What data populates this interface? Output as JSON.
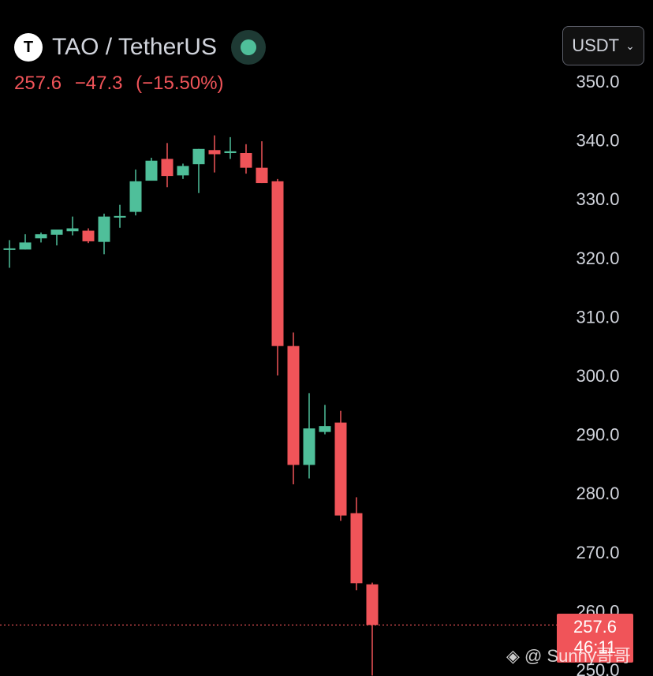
{
  "header": {
    "logo_letter": "T",
    "pair": "TAO / TetherUS",
    "last_price": "257.6",
    "change": "−47.3",
    "change_pct": "(−15.50%)"
  },
  "currency_selector": {
    "label": "USDT",
    "chevron": "chevron-down-icon"
  },
  "last_price_tag": {
    "price": "257.6",
    "countdown": "46:11"
  },
  "watermark": "◈ @ Sunny哥哥",
  "colors": {
    "up": "#4fbf9a",
    "down": "#f05459",
    "background": "#000000",
    "text": "#d1d4dc"
  },
  "chart_data": {
    "type": "candlestick",
    "y_axis_position": "right",
    "y_ticks": [
      350,
      340,
      330,
      320,
      310,
      300,
      290,
      280,
      270,
      260,
      250
    ],
    "ylim": [
      249,
      351
    ],
    "last_price": 257.6,
    "candles": [
      {
        "o": 321.6,
        "h": 323.0,
        "c": 321.6,
        "l": 318.3
      },
      {
        "o": 321.4,
        "h": 324.0,
        "c": 322.6,
        "l": 321.4
      },
      {
        "o": 323.3,
        "h": 324.3,
        "c": 324.0,
        "l": 322.6
      },
      {
        "o": 323.9,
        "h": 324.8,
        "c": 324.8,
        "l": 322.1
      },
      {
        "o": 324.5,
        "h": 327.0,
        "c": 325.0,
        "l": 323.8
      },
      {
        "o": 324.6,
        "h": 325.0,
        "c": 322.8,
        "l": 322.5
      },
      {
        "o": 322.7,
        "h": 327.5,
        "c": 327.0,
        "l": 320.6
      },
      {
        "o": 327.1,
        "h": 329.0,
        "c": 327.1,
        "l": 325.1
      },
      {
        "o": 327.8,
        "h": 335.0,
        "c": 333.0,
        "l": 327.2
      },
      {
        "o": 333.1,
        "h": 337.0,
        "c": 336.5,
        "l": 334.0
      },
      {
        "o": 336.8,
        "h": 339.5,
        "c": 333.9,
        "l": 332.0
      },
      {
        "o": 334.0,
        "h": 336.0,
        "c": 335.6,
        "l": 333.4
      },
      {
        "o": 335.9,
        "h": 338.5,
        "c": 338.5,
        "l": 331.0
      },
      {
        "o": 338.3,
        "h": 340.8,
        "c": 337.6,
        "l": 334.5
      },
      {
        "o": 337.8,
        "h": 340.5,
        "c": 338.1,
        "l": 336.8
      },
      {
        "o": 337.8,
        "h": 339.3,
        "c": 335.3,
        "l": 334.3
      },
      {
        "o": 335.3,
        "h": 339.8,
        "c": 332.7,
        "l": 332.7
      },
      {
        "o": 333.0,
        "h": 333.4,
        "c": 305.0,
        "l": 300.0
      },
      {
        "o": 305.0,
        "h": 307.3,
        "c": 284.8,
        "l": 281.5
      },
      {
        "o": 284.8,
        "h": 297.0,
        "c": 291.0,
        "l": 282.5
      },
      {
        "o": 290.4,
        "h": 295.0,
        "c": 291.4,
        "l": 290.0
      },
      {
        "o": 292.0,
        "h": 294.0,
        "c": 276.2,
        "l": 275.3
      },
      {
        "o": 276.6,
        "h": 279.3,
        "c": 264.7,
        "l": 263.5
      },
      {
        "o": 264.5,
        "h": 264.8,
        "c": 257.6,
        "l": 249.0
      }
    ]
  }
}
